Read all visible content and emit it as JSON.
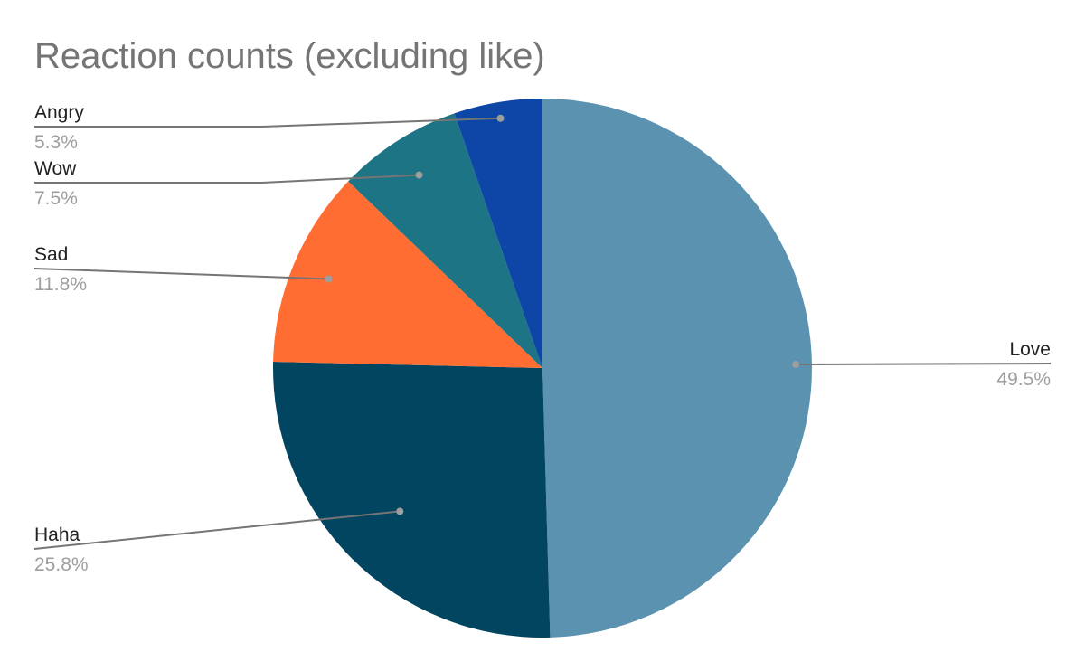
{
  "chart_data": {
    "type": "pie",
    "title": "Reaction counts (excluding like)",
    "slices": [
      {
        "label": "Love",
        "value": 49.5,
        "pct_label": "49.5%",
        "color": "#5a92b0"
      },
      {
        "label": "Haha",
        "value": 25.8,
        "pct_label": "25.8%",
        "color": "#014561"
      },
      {
        "label": "Sad",
        "value": 11.8,
        "pct_label": "11.8%",
        "color": "#ff6d33"
      },
      {
        "label": "Wow",
        "value": 7.5,
        "pct_label": "7.5%",
        "color": "#1d7485"
      },
      {
        "label": "Angry",
        "value": 5.3,
        "pct_label": "5.3%",
        "color": "#0e46a8"
      }
    ],
    "legend": "none",
    "data_labels": "outside-with-leaders"
  }
}
